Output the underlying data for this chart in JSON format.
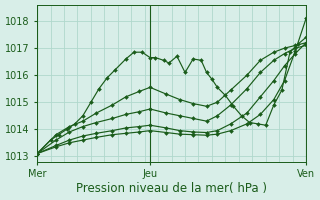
{
  "bg_color": "#d8eee8",
  "grid_color": "#b0d8cc",
  "line_color": "#1a5c1a",
  "marker_color": "#1a5c1a",
  "xlabel": "Pression niveau de la mer( hPa )",
  "xlabel_fontsize": 8.5,
  "tick_fontsize": 7,
  "ylim": [
    1012.8,
    1018.6
  ],
  "yticks": [
    1013,
    1014,
    1015,
    1016,
    1017,
    1018
  ],
  "xticks_pos": [
    0.0,
    0.42,
    1.0
  ],
  "xtick_labels": [
    "Mer",
    "Jeu",
    "Ven"
  ],
  "vline_x": [
    0.0,
    0.42,
    1.0
  ],
  "series": [
    {
      "pts": [
        [
          0.0,
          1013.1
        ],
        [
          0.05,
          1013.6
        ],
        [
          0.08,
          1013.8
        ],
        [
          0.11,
          1014.0
        ],
        [
          0.14,
          1014.2
        ],
        [
          0.17,
          1014.5
        ],
        [
          0.2,
          1015.0
        ],
        [
          0.23,
          1015.5
        ],
        [
          0.26,
          1015.9
        ],
        [
          0.29,
          1016.2
        ],
        [
          0.33,
          1016.6
        ],
        [
          0.36,
          1016.85
        ],
        [
          0.39,
          1016.85
        ],
        [
          0.42,
          1016.65
        ],
        [
          0.44,
          1016.65
        ],
        [
          0.47,
          1016.55
        ],
        [
          0.49,
          1016.45
        ],
        [
          0.52,
          1016.7
        ],
        [
          0.55,
          1016.1
        ],
        [
          0.58,
          1016.6
        ],
        [
          0.61,
          1016.55
        ],
        [
          0.63,
          1016.1
        ],
        [
          0.65,
          1015.85
        ],
        [
          0.67,
          1015.55
        ],
        [
          0.7,
          1015.25
        ],
        [
          0.73,
          1014.85
        ],
        [
          0.76,
          1014.5
        ],
        [
          0.79,
          1014.25
        ],
        [
          0.82,
          1014.2
        ],
        [
          0.85,
          1014.15
        ],
        [
          0.88,
          1014.9
        ],
        [
          0.91,
          1015.45
        ],
        [
          0.94,
          1016.85
        ],
        [
          0.97,
          1017.15
        ],
        [
          1.0,
          1017.4
        ]
      ]
    },
    {
      "pts": [
        [
          0.0,
          1013.1
        ],
        [
          0.07,
          1013.8
        ],
        [
          0.12,
          1014.1
        ],
        [
          0.17,
          1014.3
        ],
        [
          0.22,
          1014.6
        ],
        [
          0.28,
          1014.9
        ],
        [
          0.33,
          1015.2
        ],
        [
          0.38,
          1015.4
        ],
        [
          0.42,
          1015.55
        ],
        [
          0.48,
          1015.3
        ],
        [
          0.53,
          1015.1
        ],
        [
          0.58,
          1014.95
        ],
        [
          0.63,
          1014.85
        ],
        [
          0.67,
          1015.0
        ],
        [
          0.72,
          1015.45
        ],
        [
          0.78,
          1016.0
        ],
        [
          0.83,
          1016.55
        ],
        [
          0.88,
          1016.85
        ],
        [
          0.92,
          1017.0
        ],
        [
          0.96,
          1017.1
        ],
        [
          1.0,
          1017.2
        ]
      ]
    },
    {
      "pts": [
        [
          0.0,
          1013.1
        ],
        [
          0.07,
          1013.6
        ],
        [
          0.12,
          1013.9
        ],
        [
          0.17,
          1014.1
        ],
        [
          0.22,
          1014.25
        ],
        [
          0.28,
          1014.4
        ],
        [
          0.33,
          1014.55
        ],
        [
          0.38,
          1014.65
        ],
        [
          0.42,
          1014.75
        ],
        [
          0.48,
          1014.6
        ],
        [
          0.53,
          1014.5
        ],
        [
          0.58,
          1014.4
        ],
        [
          0.63,
          1014.3
        ],
        [
          0.67,
          1014.5
        ],
        [
          0.72,
          1014.9
        ],
        [
          0.78,
          1015.5
        ],
        [
          0.83,
          1016.1
        ],
        [
          0.88,
          1016.55
        ],
        [
          0.92,
          1016.8
        ],
        [
          0.96,
          1017.0
        ],
        [
          1.0,
          1017.1
        ]
      ]
    },
    {
      "pts": [
        [
          0.0,
          1013.1
        ],
        [
          0.07,
          1013.4
        ],
        [
          0.12,
          1013.6
        ],
        [
          0.17,
          1013.75
        ],
        [
          0.22,
          1013.85
        ],
        [
          0.28,
          1013.95
        ],
        [
          0.33,
          1014.05
        ],
        [
          0.38,
          1014.1
        ],
        [
          0.42,
          1014.15
        ],
        [
          0.48,
          1014.05
        ],
        [
          0.53,
          1013.95
        ],
        [
          0.58,
          1013.9
        ],
        [
          0.63,
          1013.88
        ],
        [
          0.67,
          1013.95
        ],
        [
          0.72,
          1014.2
        ],
        [
          0.78,
          1014.6
        ],
        [
          0.83,
          1015.2
        ],
        [
          0.88,
          1015.8
        ],
        [
          0.92,
          1016.35
        ],
        [
          0.96,
          1016.8
        ],
        [
          1.0,
          1017.2
        ]
      ]
    },
    {
      "pts": [
        [
          0.0,
          1013.1
        ],
        [
          0.07,
          1013.35
        ],
        [
          0.12,
          1013.5
        ],
        [
          0.17,
          1013.6
        ],
        [
          0.22,
          1013.7
        ],
        [
          0.28,
          1013.8
        ],
        [
          0.33,
          1013.85
        ],
        [
          0.38,
          1013.9
        ],
        [
          0.42,
          1013.95
        ],
        [
          0.48,
          1013.88
        ],
        [
          0.53,
          1013.82
        ],
        [
          0.58,
          1013.8
        ],
        [
          0.63,
          1013.78
        ],
        [
          0.67,
          1013.82
        ],
        [
          0.72,
          1013.95
        ],
        [
          0.78,
          1014.2
        ],
        [
          0.83,
          1014.55
        ],
        [
          0.88,
          1015.1
        ],
        [
          0.92,
          1015.8
        ],
        [
          0.96,
          1016.9
        ],
        [
          1.0,
          1018.1
        ]
      ]
    }
  ]
}
